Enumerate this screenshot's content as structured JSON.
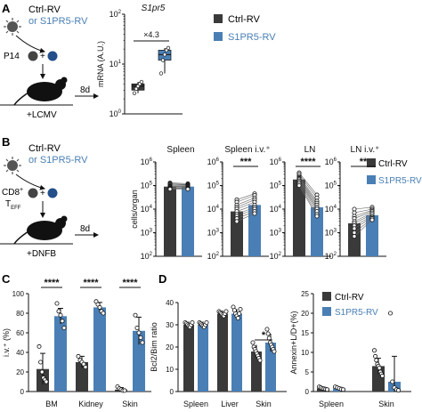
{
  "colors": {
    "ctrl": "#3a3a3a",
    "s1pr5": "#4a7fb5",
    "s1pr5_text": "#4a7fb5",
    "axis": "#111111"
  },
  "panels": {
    "A": {
      "letter": "A",
      "label_line1": "Ctrl-RV",
      "label_line2": "or S1PR5-RV",
      "cells_label": "P14",
      "arrow_label": "8d",
      "infection": "+LCMV"
    },
    "B": {
      "letter": "B",
      "label_line1": "Ctrl-RV",
      "label_line2": "or S1PR5-RV",
      "cells_label_main": "CD8",
      "cells_label_sup": "+",
      "cells_label2_main": "T",
      "cells_label2_sub": "EFF",
      "arrow_label": "8d",
      "treatment": "+DNFB"
    },
    "C": {
      "letter": "C"
    },
    "D": {
      "letter": "D"
    }
  },
  "legend": {
    "ctrl": "Ctrl-RV",
    "s1pr5": "S1PR5-RV"
  },
  "chart_data": [
    {
      "id": "A",
      "type": "box",
      "title": "S1pr5",
      "ylabel": "mRNA (A.U.)",
      "yscale": "log",
      "ylim": [
        1,
        100
      ],
      "yticks": [
        "10^0",
        "10^1",
        "10^2"
      ],
      "annotation": "×4.3",
      "series": [
        {
          "name": "Ctrl-RV",
          "values": [
            3.6
          ],
          "q1": 3.0,
          "q3": 4.0,
          "min": 2.6,
          "max": 4.4,
          "points": [
            2.6,
            3.2,
            3.6,
            4.0,
            4.4
          ]
        },
        {
          "name": "S1PR5-RV",
          "values": [
            15.5
          ],
          "q1": 12.0,
          "q3": 19.0,
          "min": 6.5,
          "max": 21.0,
          "points": [
            6.5,
            12.0,
            15.5,
            19.0,
            21.0
          ]
        }
      ]
    },
    {
      "id": "B",
      "type": "bar",
      "ylabel": "cells/organ",
      "yscale": "log",
      "ylim": [
        100,
        1000000
      ],
      "yticks": [
        "10^2",
        "10^3",
        "10^4",
        "10^5",
        "10^6"
      ],
      "categories": [
        "Spleen",
        "Spleen i.v.⁺",
        "LN",
        "LN i.v.⁺"
      ],
      "significance": [
        "",
        "***",
        "****",
        "**"
      ],
      "series": [
        {
          "name": "Ctrl-RV",
          "values": [
            90000,
            8000,
            180000,
            2500
          ]
        },
        {
          "name": "S1PR5-RV",
          "values": [
            90000,
            15000,
            12000,
            5500
          ]
        }
      ],
      "points": [
        {
          "ctrl": [
            130000,
            120000,
            110000,
            100000,
            95000,
            90000,
            85000,
            80000,
            75000,
            70000
          ],
          "s1pr5": [
            120000,
            110000,
            105000,
            100000,
            95000,
            90000,
            85000,
            80000,
            75000,
            70000
          ]
        },
        {
          "ctrl": [
            25000,
            20000,
            15000,
            12000,
            10000,
            8000,
            6000,
            5000,
            4000,
            3000
          ],
          "s1pr5": [
            45000,
            38000,
            30000,
            25000,
            20000,
            15000,
            12000,
            10000,
            8000,
            6500
          ]
        },
        {
          "ctrl": [
            350000,
            300000,
            250000,
            220000,
            200000,
            180000,
            160000,
            140000,
            120000,
            100000
          ],
          "s1pr5": [
            40000,
            30000,
            22000,
            18000,
            15000,
            12000,
            10000,
            8000,
            6000,
            5000
          ]
        },
        {
          "ctrl": [
            10000,
            7000,
            5000,
            4000,
            3000,
            2500,
            2000,
            1500,
            1000,
            700
          ],
          "s1pr5": [
            12000,
            10000,
            9000,
            8000,
            7000,
            6000,
            5000,
            4500,
            4000,
            3500
          ]
        }
      ]
    },
    {
      "id": "C",
      "type": "bar",
      "ylabel": "i.v.⁺ (%)",
      "ylim": [
        0,
        100
      ],
      "yticks": [
        0,
        20,
        40,
        60,
        80,
        100
      ],
      "categories": [
        "BM",
        "Kidney",
        "Skin"
      ],
      "significance": [
        "****",
        "****",
        "****"
      ],
      "series": [
        {
          "name": "Ctrl-RV",
          "values": [
            23,
            30,
            2
          ],
          "errors": [
            16,
            6,
            2
          ]
        },
        {
          "name": "S1PR5-RV",
          "values": [
            77,
            86,
            62
          ],
          "errors": [
            8,
            5,
            14
          ]
        }
      ],
      "points": [
        {
          "ctrl": [
            46,
            30,
            20,
            14,
            12,
            10
          ],
          "s1pr5": [
            90,
            82,
            78,
            72,
            65
          ]
        },
        {
          "ctrl": [
            36,
            32,
            30,
            28,
            25
          ],
          "s1pr5": [
            92,
            89,
            86,
            82,
            80
          ]
        },
        {
          "ctrl": [
            5,
            3,
            2,
            1,
            1
          ],
          "s1pr5": [
            78,
            65,
            60,
            55,
            50
          ]
        }
      ]
    },
    {
      "id": "D-left",
      "type": "bar",
      "ylabel": "Bcl2/Bim ratio",
      "ylim": [
        0,
        40
      ],
      "yticks": [
        0,
        10,
        20,
        30,
        40
      ],
      "categories": [
        "Spleen",
        "Liver",
        "Skin"
      ],
      "significance": [
        "",
        "",
        "*"
      ],
      "series": [
        {
          "name": "Ctrl-RV",
          "values": [
            30,
            35,
            18
          ],
          "errors": [
            1.5,
            1.5,
            3
          ]
        },
        {
          "name": "S1PR5-RV",
          "values": [
            30,
            35,
            22
          ],
          "errors": [
            1.5,
            2,
            4
          ]
        }
      ],
      "points": [
        {
          "ctrl": [
            31,
            30.5,
            30,
            29.5,
            29,
            30,
            31
          ],
          "s1pr5": [
            31,
            30.5,
            30,
            29.5,
            29,
            30,
            31
          ]
        },
        {
          "ctrl": [
            36,
            35.5,
            35,
            34.5,
            34,
            35,
            36
          ],
          "s1pr5": [
            38,
            36.5,
            35,
            34,
            33,
            35,
            37
          ]
        },
        {
          "ctrl": [
            22,
            20,
            19,
            18,
            17,
            16,
            15,
            14
          ],
          "s1pr5": [
            28,
            26,
            24,
            22,
            21,
            20,
            19,
            18
          ]
        }
      ]
    },
    {
      "id": "D-right",
      "type": "bar",
      "ylabel": "Annexin+L/D+(%)",
      "ylim": [
        0,
        25
      ],
      "yticks": [
        0,
        5,
        10,
        15,
        20,
        25
      ],
      "categories": [
        "Spleen",
        "Skin"
      ],
      "series": [
        {
          "name": "Ctrl-RV",
          "values": [
            0.8,
            6.5
          ],
          "errors": [
            0.3,
            2
          ]
        },
        {
          "name": "S1PR5-RV",
          "values": [
            0.8,
            2.5
          ],
          "errors": [
            0.3,
            6.5
          ]
        }
      ],
      "points": [
        {
          "ctrl": [
            1.2,
            1,
            0.8,
            0.7,
            0.6,
            0.5
          ],
          "s1pr5": [
            1.2,
            1,
            0.8,
            0.6,
            0.5
          ]
        },
        {
          "ctrl": [
            10.5,
            9,
            8,
            7,
            6.5,
            6,
            5,
            4.5,
            4
          ],
          "s1pr5": [
            20,
            2.5,
            1,
            0.5,
            0.3
          ]
        }
      ]
    }
  ]
}
